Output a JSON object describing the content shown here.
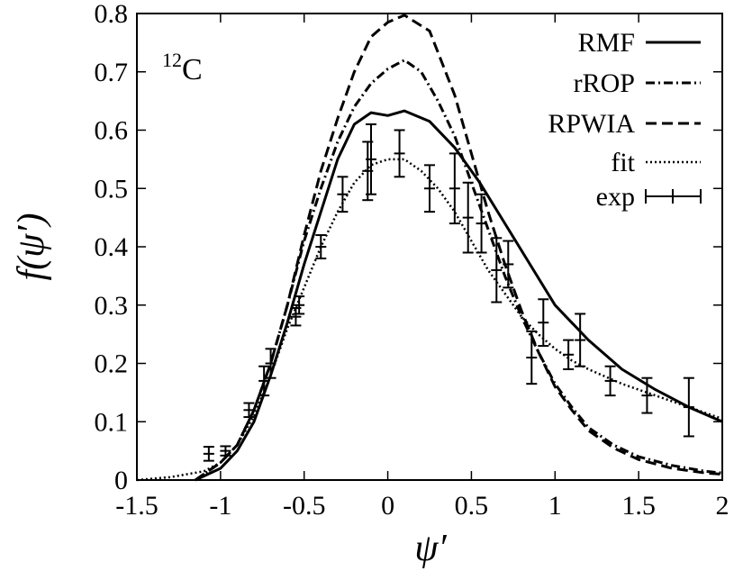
{
  "chart_data": {
    "type": "line",
    "annotation": {
      "sup": "12",
      "main": "C"
    },
    "xlabel": "ψ′",
    "ylabel": "f(ψ′)",
    "xlim": [
      -1.5,
      2
    ],
    "ylim": [
      0,
      0.8
    ],
    "xticks": [
      -1.5,
      -1,
      -0.5,
      0,
      0.5,
      1,
      1.5,
      2
    ],
    "xtick_labels": [
      "-1.5",
      "-1",
      "-0.5",
      "0",
      "0.5",
      "1",
      "1.5",
      "2"
    ],
    "yticks": [
      0,
      0.1,
      0.2,
      0.3,
      0.4,
      0.5,
      0.6,
      0.7,
      0.8
    ],
    "ytick_labels": [
      "0",
      "0.1",
      "0.2",
      "0.3",
      "0.4",
      "0.5",
      "0.6",
      "0.7",
      "0.8"
    ],
    "legend_position": "top-right",
    "series": [
      {
        "name": "RMF",
        "style": "solid",
        "x": [
          -1.15,
          -1.0,
          -0.9,
          -0.8,
          -0.7,
          -0.6,
          -0.5,
          -0.4,
          -0.3,
          -0.2,
          -0.1,
          0.0,
          0.1,
          0.25,
          0.4,
          0.55,
          0.7,
          0.85,
          1.0,
          1.2,
          1.4,
          1.6,
          1.8,
          2.0
        ],
        "y": [
          0.0,
          0.02,
          0.05,
          0.1,
          0.18,
          0.27,
          0.37,
          0.46,
          0.55,
          0.61,
          0.63,
          0.625,
          0.633,
          0.615,
          0.57,
          0.51,
          0.44,
          0.37,
          0.3,
          0.24,
          0.19,
          0.155,
          0.125,
          0.1
        ]
      },
      {
        "name": "rROP",
        "style": "dashdot",
        "x": [
          -1.15,
          -1.0,
          -0.9,
          -0.8,
          -0.7,
          -0.6,
          -0.5,
          -0.4,
          -0.3,
          -0.2,
          -0.1,
          0.0,
          0.1,
          0.2,
          0.3,
          0.4,
          0.5,
          0.6,
          0.7,
          0.8,
          0.9,
          1.0,
          1.1,
          1.2,
          1.35,
          1.5,
          1.7,
          1.9,
          2.0
        ],
        "y": [
          0.0,
          0.03,
          0.06,
          0.12,
          0.2,
          0.3,
          0.41,
          0.5,
          0.58,
          0.64,
          0.68,
          0.705,
          0.72,
          0.7,
          0.65,
          0.59,
          0.51,
          0.43,
          0.35,
          0.28,
          0.22,
          0.165,
          0.125,
          0.09,
          0.06,
          0.04,
          0.025,
          0.015,
          0.012
        ]
      },
      {
        "name": "RPWIA",
        "style": "dashed",
        "x": [
          -1.15,
          -1.0,
          -0.9,
          -0.8,
          -0.7,
          -0.6,
          -0.5,
          -0.4,
          -0.3,
          -0.2,
          -0.1,
          0.0,
          0.1,
          0.25,
          0.4,
          0.5,
          0.6,
          0.7,
          0.8,
          0.9,
          1.0,
          1.1,
          1.2,
          1.35,
          1.5,
          1.7,
          1.9,
          2.0
        ],
        "y": [
          0.0,
          0.03,
          0.06,
          0.12,
          0.2,
          0.3,
          0.42,
          0.53,
          0.62,
          0.7,
          0.76,
          0.785,
          0.797,
          0.77,
          0.66,
          0.56,
          0.46,
          0.37,
          0.29,
          0.22,
          0.16,
          0.12,
          0.085,
          0.055,
          0.035,
          0.02,
          0.012,
          0.01
        ]
      },
      {
        "name": "fit",
        "style": "dotted",
        "x": [
          -1.5,
          -1.3,
          -1.1,
          -1.0,
          -0.9,
          -0.8,
          -0.7,
          -0.6,
          -0.5,
          -0.4,
          -0.3,
          -0.2,
          -0.1,
          0.0,
          0.1,
          0.2,
          0.3,
          0.4,
          0.5,
          0.6,
          0.7,
          0.8,
          0.9,
          1.0,
          1.1,
          1.2,
          1.4,
          1.6,
          1.8,
          2.0
        ],
        "y": [
          0.0,
          0.005,
          0.015,
          0.03,
          0.06,
          0.11,
          0.18,
          0.26,
          0.33,
          0.4,
          0.46,
          0.51,
          0.54,
          0.55,
          0.55,
          0.53,
          0.5,
          0.46,
          0.41,
          0.36,
          0.32,
          0.28,
          0.25,
          0.225,
          0.205,
          0.19,
          0.165,
          0.145,
          0.125,
          0.105
        ]
      },
      {
        "name": "exp",
        "style": "errorbar",
        "points": [
          {
            "x": -1.07,
            "y": 0.045,
            "err": 0.012
          },
          {
            "x": -0.97,
            "y": 0.05,
            "err": 0.008
          },
          {
            "x": -0.83,
            "y": 0.12,
            "err": 0.012
          },
          {
            "x": -0.74,
            "y": 0.17,
            "err": 0.025
          },
          {
            "x": -0.7,
            "y": 0.2,
            "err": 0.025
          },
          {
            "x": -0.55,
            "y": 0.28,
            "err": 0.015
          },
          {
            "x": -0.53,
            "y": 0.3,
            "err": 0.015
          },
          {
            "x": -0.4,
            "y": 0.4,
            "err": 0.02
          },
          {
            "x": -0.27,
            "y": 0.49,
            "err": 0.03
          },
          {
            "x": -0.12,
            "y": 0.53,
            "err": 0.05
          },
          {
            "x": -0.1,
            "y": 0.55,
            "err": 0.06
          },
          {
            "x": 0.07,
            "y": 0.56,
            "err": 0.04
          },
          {
            "x": 0.25,
            "y": 0.5,
            "err": 0.04
          },
          {
            "x": 0.4,
            "y": 0.5,
            "err": 0.06
          },
          {
            "x": 0.48,
            "y": 0.45,
            "err": 0.06
          },
          {
            "x": 0.56,
            "y": 0.44,
            "err": 0.05
          },
          {
            "x": 0.65,
            "y": 0.36,
            "err": 0.055
          },
          {
            "x": 0.72,
            "y": 0.37,
            "err": 0.04
          },
          {
            "x": 0.86,
            "y": 0.21,
            "err": 0.045
          },
          {
            "x": 0.93,
            "y": 0.27,
            "err": 0.04
          },
          {
            "x": 1.08,
            "y": 0.215,
            "err": 0.025
          },
          {
            "x": 1.15,
            "y": 0.24,
            "err": 0.045
          },
          {
            "x": 1.33,
            "y": 0.17,
            "err": 0.025
          },
          {
            "x": 1.55,
            "y": 0.145,
            "err": 0.03
          },
          {
            "x": 1.8,
            "y": 0.125,
            "err": 0.05
          }
        ]
      }
    ]
  }
}
